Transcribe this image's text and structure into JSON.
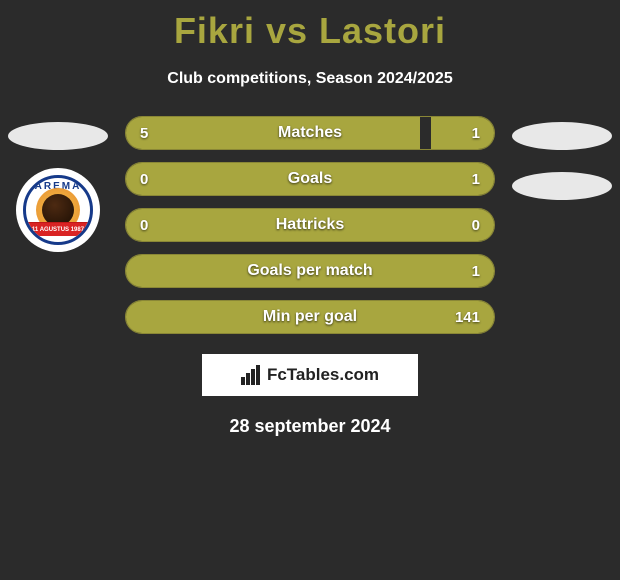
{
  "header": {
    "title": "Fikri vs Lastori",
    "subtitle": "Club competitions, Season 2024/2025",
    "title_color": "#a8a63f"
  },
  "crest": {
    "arc_text": "AREMA",
    "banner_text": "11 AGUSTUS 1987"
  },
  "stats": {
    "bar_color": "#a8a63f",
    "track_color": "#2b2b2b",
    "rows": [
      {
        "label": "Matches",
        "left": "5",
        "right": "1",
        "left_pct": 80,
        "right_pct": 17
      },
      {
        "label": "Goals",
        "left": "0",
        "right": "1",
        "left_pct": 14,
        "right_pct": 86
      },
      {
        "label": "Hattricks",
        "left": "0",
        "right": "0",
        "left_pct": 100,
        "right_pct": 0
      },
      {
        "label": "Goals per match",
        "left": "",
        "right": "1",
        "left_pct": 100,
        "right_pct": 0
      },
      {
        "label": "Min per goal",
        "left": "",
        "right": "141",
        "left_pct": 100,
        "right_pct": 0
      }
    ]
  },
  "brand": {
    "text": "FcTables.com"
  },
  "date": "28 september 2024"
}
